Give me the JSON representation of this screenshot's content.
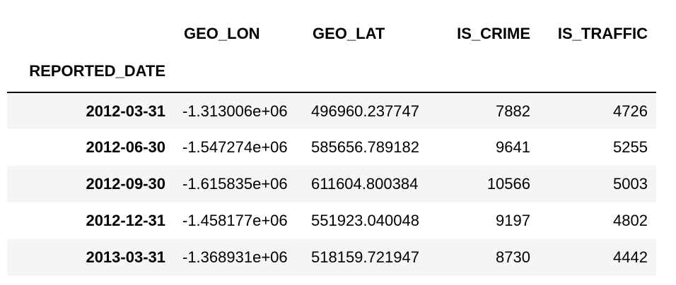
{
  "table": {
    "columns": [
      "GEO_LON",
      "GEO_LAT",
      "IS_CRIME",
      "IS_TRAFFIC"
    ],
    "index_name": "REPORTED_DATE",
    "rows": [
      {
        "index": "2012-03-31",
        "values": [
          "-1.313006e+06",
          "496960.237747",
          "7882",
          "4726"
        ]
      },
      {
        "index": "2012-06-30",
        "values": [
          "-1.547274e+06",
          "585656.789182",
          "9641",
          "5255"
        ]
      },
      {
        "index": "2012-09-30",
        "values": [
          "-1.615835e+06",
          "611604.800384",
          "10566",
          "5003"
        ]
      },
      {
        "index": "2012-12-31",
        "values": [
          "-1.458177e+06",
          "551923.040048",
          "9197",
          "4802"
        ]
      },
      {
        "index": "2013-03-31",
        "values": [
          "-1.368931e+06",
          "518159.721947",
          "8730",
          "4442"
        ]
      }
    ]
  }
}
